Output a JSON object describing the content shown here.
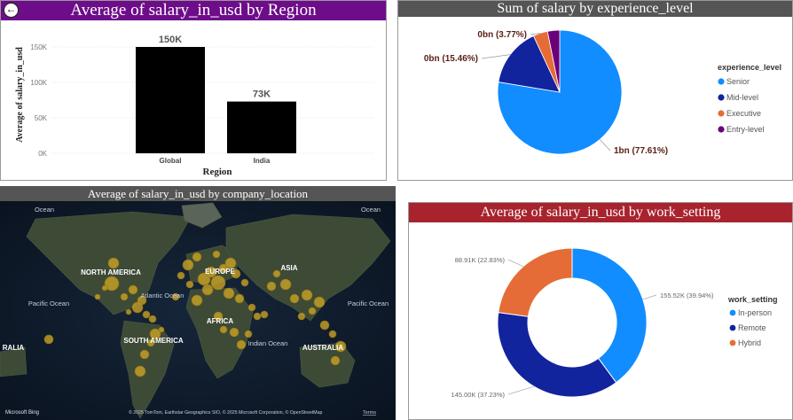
{
  "back_icon": "back-arrow-icon",
  "bar_panel": {
    "title": "Average of salary_in_usd by Region",
    "title_bg": "#6e0d8a",
    "ylabel": "Average of salary_in_usd",
    "xlabel": "Region",
    "y_ticks": [
      "0K",
      "50K",
      "100K",
      "150K"
    ],
    "bar_color": "#000000"
  },
  "pie_panel": {
    "title": "Sum of salary by experience_level",
    "title_bg": "#555555",
    "legend_title": "experience_level"
  },
  "map_panel": {
    "title": "Average of salary_in_usd by company_location",
    "title_bg": "#555555",
    "labels": {
      "north_america": "NORTH AMERICA",
      "south_america": "SOUTH AMERICA",
      "asia": "ASIA",
      "africa": "AFRICA",
      "australia": "AUSTRALIA",
      "europe": "EUROPE",
      "atlantic": "Atlantic Ocean",
      "pacific_left": "Pacific Ocean",
      "pacific_right": "Pacific Ocean",
      "indian": "Indian Ocean",
      "ocean_top_left": "Ocean",
      "ocean_top_right": "Ocean",
      "ralia_left": "RALIA"
    },
    "bing_logo": "Microsoft Bing",
    "copyright": "© 2025 TomTom, Earthstar Geographics SIO, © 2025 Microsoft Corporation, © OpenStreetMap",
    "terms": "Terms",
    "bubble_color": "#c9a227"
  },
  "donut_panel": {
    "title": "Average of salary_in_usd by work_setting",
    "title_bg": "#a8232e",
    "legend_title": "work_setting"
  },
  "chart_data": [
    {
      "type": "bar",
      "title": "Average of salary_in_usd by Region",
      "xlabel": "Region",
      "ylabel": "Average of salary_in_usd",
      "categories": [
        "Global",
        "India"
      ],
      "values": [
        150000,
        73000
      ],
      "data_labels": [
        "150K",
        "73K"
      ],
      "ylim": [
        0,
        175000
      ],
      "grid": true
    },
    {
      "type": "pie",
      "title": "Sum of salary by experience_level",
      "legend_title": "experience_level",
      "legend_position": "right",
      "slices": [
        {
          "name": "Senior",
          "value": 77.61,
          "label": "1bn (77.61%)",
          "color": "#118dff"
        },
        {
          "name": "Mid-level",
          "value": 15.46,
          "label": "0bn (15.46%)",
          "color": "#12239e"
        },
        {
          "name": "Executive",
          "value": 3.77,
          "label": "0bn (3.77%)",
          "color": "#e66c37"
        },
        {
          "name": "Entry-level",
          "value": 3.16,
          "label": "",
          "color": "#6b007b"
        }
      ]
    },
    {
      "type": "pie",
      "subtype": "donut",
      "title": "Average of salary_in_usd by work_setting",
      "legend_title": "work_setting",
      "legend_position": "right",
      "slices": [
        {
          "name": "In-person",
          "value": 155520,
          "label": "155.52K (39.94%)",
          "color": "#118dff"
        },
        {
          "name": "Remote",
          "value": 145000,
          "label": "145.00K (37.23%)",
          "color": "#12239e"
        },
        {
          "name": "Hybrid",
          "value": 88910,
          "label": "88.91K (22.83%)",
          "color": "#e66c37"
        }
      ]
    }
  ]
}
